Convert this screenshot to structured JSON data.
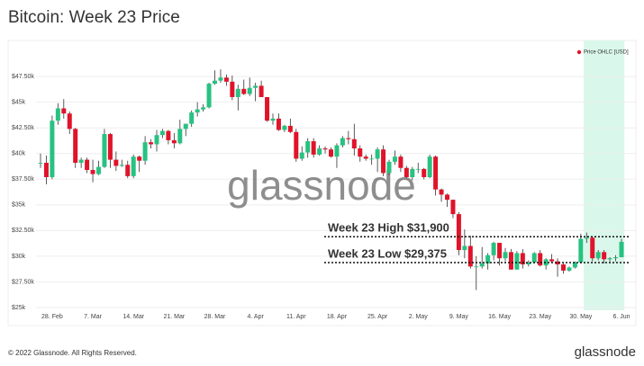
{
  "chart_data": {
    "type": "candlestick",
    "title": "Bitcoin: Week 23 Price",
    "watermark": "glassnode",
    "footer": "© 2022 Glassnode. All Rights Reserved.",
    "brand": "glassnode",
    "legend_position": "top-right",
    "grid": true,
    "up_color": "#27c281",
    "down_color": "#e0132b",
    "highlight_color": "#d9f7ea",
    "highlight_range": [
      94,
      100
    ],
    "categories": [
      null,
      null,
      "28. Feb",
      null,
      null,
      null,
      null,
      null,
      null,
      "7. Mar",
      null,
      null,
      null,
      null,
      null,
      null,
      "14. Mar",
      null,
      null,
      null,
      null,
      null,
      null,
      "21. Mar",
      null,
      null,
      null,
      null,
      null,
      null,
      "28. Mar",
      null,
      null,
      null,
      null,
      null,
      null,
      "4. Apr",
      null,
      null,
      null,
      null,
      null,
      null,
      "11. Apr",
      null,
      null,
      null,
      null,
      null,
      null,
      "18. Apr",
      null,
      null,
      null,
      null,
      null,
      null,
      "25. Apr",
      null,
      null,
      null,
      null,
      null,
      null,
      "2. May",
      null,
      null,
      null,
      null,
      null,
      null,
      "9. May",
      null,
      null,
      null,
      null,
      null,
      null,
      "16. May",
      null,
      null,
      null,
      null,
      null,
      null,
      "23. May",
      null,
      null,
      null,
      null,
      null,
      null,
      "30. May",
      null,
      null,
      null,
      null,
      null,
      null,
      "6. Jun"
    ],
    "series": [
      {
        "name": "Price OHLC [USD]",
        "color": "#e0132b",
        "open": [
          39100,
          39100,
          37700,
          43200,
          44400,
          43900,
          42400,
          39100,
          39400,
          38400,
          38000,
          38700,
          41900,
          39400,
          38800,
          38900,
          37800,
          39700,
          39300,
          41100,
          40900,
          41800,
          42200,
          41300,
          41000,
          42400,
          42900,
          44000,
          44300,
          44500,
          46800,
          47100,
          47400,
          47000,
          45500,
          46300,
          45800,
          46400,
          46600,
          45500,
          43200,
          43400,
          42300,
          42700,
          42100,
          39500,
          40100,
          41200,
          39900,
          40500,
          40400,
          39700,
          40800,
          41500,
          41400,
          40500,
          39700,
          39500,
          39500,
          40400,
          38100,
          39200,
          39700,
          38600,
          37700,
          38500,
          38500,
          37700,
          39700,
          36500,
          36000,
          35500,
          34100,
          30600,
          31000,
          29000,
          29000,
          29300,
          30100,
          31300,
          29800,
          30400,
          28700,
          30300,
          29200,
          29400,
          30300,
          29100,
          29700,
          29500,
          29200,
          28600,
          28900,
          29400,
          31700,
          31800,
          29800,
          30400,
          29700,
          29800,
          29900
        ],
        "high": [
          40000,
          39800,
          43700,
          44900,
          45300,
          44100,
          42500,
          39600,
          39600,
          39400,
          39300,
          42400,
          42000,
          40200,
          39400,
          39300,
          39900,
          39800,
          41700,
          41400,
          42300,
          42400,
          42300,
          42000,
          43300,
          42900,
          44200,
          45000,
          44800,
          46900,
          48100,
          48200,
          47700,
          47600,
          46700,
          47200,
          47400,
          46900,
          47100,
          45500,
          43900,
          43900,
          42800,
          43400,
          42400,
          40700,
          41500,
          41500,
          40800,
          40700,
          40600,
          41000,
          41700,
          42200,
          42900,
          40800,
          39900,
          39900,
          40600,
          40800,
          39400,
          40300,
          39900,
          38800,
          38700,
          39100,
          38600,
          39900,
          39800,
          36600,
          36100,
          35500,
          34300,
          32600,
          32000,
          30000,
          30900,
          30300,
          31400,
          31300,
          30800,
          30700,
          30500,
          30700,
          29600,
          30400,
          30600,
          29800,
          30200,
          29800,
          29300,
          29000,
          29500,
          32200,
          32300,
          31900,
          30600,
          30600,
          29900,
          30100,
          31700
        ],
        "low": [
          38600,
          37000,
          37500,
          42800,
          43400,
          41900,
          38600,
          38600,
          38100,
          37200,
          37900,
          38600,
          38600,
          38300,
          38700,
          37600,
          37600,
          38200,
          38900,
          40500,
          40200,
          41500,
          40900,
          40500,
          40900,
          41700,
          42600,
          43600,
          44100,
          44400,
          46700,
          46900,
          46600,
          45200,
          44200,
          45700,
          45600,
          45100,
          45500,
          43100,
          42800,
          42200,
          42100,
          42000,
          39200,
          39300,
          39600,
          39600,
          39800,
          40000,
          39600,
          38600,
          40600,
          40900,
          39800,
          39200,
          39300,
          38900,
          38200,
          37800,
          37900,
          38900,
          38200,
          37600,
          37400,
          38100,
          37500,
          37600,
          35900,
          35300,
          34800,
          33700,
          30100,
          29800,
          28800,
          26700,
          28800,
          28700,
          29600,
          29100,
          29500,
          28700,
          28700,
          28800,
          29000,
          29300,
          29000,
          28700,
          29400,
          28000,
          28300,
          28500,
          28800,
          29300,
          31300,
          29500,
          29600,
          29300,
          29500,
          29500,
          29900
        ],
        "close": [
          39100,
          37700,
          43200,
          44400,
          43900,
          42400,
          39100,
          39400,
          38400,
          38000,
          38700,
          41900,
          39400,
          38800,
          38900,
          37800,
          39700,
          39300,
          41100,
          40900,
          41800,
          42200,
          41300,
          41000,
          42400,
          42900,
          44000,
          44300,
          44500,
          46800,
          47100,
          47400,
          47000,
          45500,
          46300,
          45800,
          46400,
          46600,
          45500,
          43200,
          43400,
          42300,
          42700,
          42100,
          39500,
          40100,
          41200,
          39900,
          40500,
          40400,
          39700,
          40800,
          41500,
          41400,
          40500,
          39700,
          39500,
          39500,
          40400,
          38100,
          39200,
          39700,
          38600,
          37700,
          38500,
          38500,
          37700,
          39700,
          36500,
          36000,
          35500,
          34100,
          30600,
          31000,
          29000,
          29000,
          29300,
          30100,
          31300,
          29800,
          30400,
          28700,
          30300,
          29200,
          29400,
          30300,
          29100,
          29700,
          29500,
          29200,
          28600,
          28900,
          29400,
          31700,
          31800,
          29800,
          30400,
          29700,
          29800,
          29900,
          31400
        ]
      }
    ],
    "ylim": [
      25000,
      49000
    ],
    "yticks": [
      {
        "value": 25000,
        "label": "$25k"
      },
      {
        "value": 27500,
        "label": "$27.50k"
      },
      {
        "value": 30000,
        "label": "$30k"
      },
      {
        "value": 32500,
        "label": "$32.50k"
      },
      {
        "value": 35000,
        "label": "$35k"
      },
      {
        "value": 37500,
        "label": "$37.50k"
      },
      {
        "value": 40000,
        "label": "$40k"
      },
      {
        "value": 42500,
        "label": "$42.50k"
      },
      {
        "value": 45000,
        "label": "$45k"
      },
      {
        "value": 47500,
        "label": "$47.50k"
      }
    ],
    "annotations": [
      {
        "text": "Week 23 High $31,900",
        "value": 31900
      },
      {
        "text": "Week 23 Low $29,375",
        "value": 29375
      }
    ]
  }
}
